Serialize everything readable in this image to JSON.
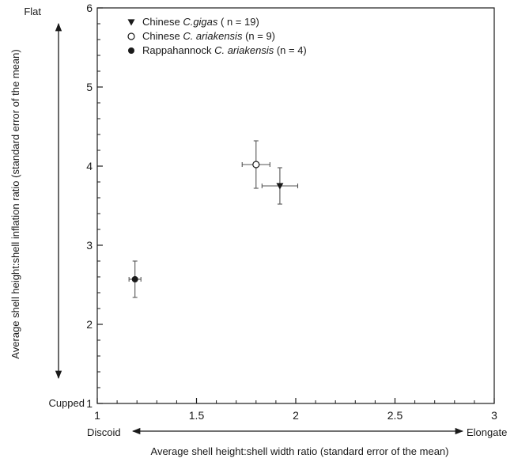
{
  "chart_data": {
    "type": "scatter",
    "xlabel": "Average shell height:shell width ratio (standard error of the mean)",
    "ylabel": "Average shell height:shell inflation ratio (standard error of the mean)",
    "xlim": [
      1,
      3
    ],
    "ylim": [
      1,
      6
    ],
    "xticks": [
      "1",
      "1.5",
      "2",
      "2.5",
      "3"
    ],
    "yticks": [
      "1",
      "2",
      "3",
      "4",
      "5",
      "6"
    ],
    "grid": false,
    "legend_position": "top-left",
    "annotations": {
      "x_low": "Discoid",
      "x_high": "Elongate",
      "y_low": "Cupped",
      "y_high": "Flat"
    },
    "series": [
      {
        "legend_prefix": "Chinese",
        "legend_species": "C.gigas",
        "legend_suffix": "( n = 19)",
        "marker": "triangle-down",
        "points": [
          {
            "x": 1.92,
            "y": 3.75,
            "xerr": 0.09,
            "yerr": 0.23
          }
        ]
      },
      {
        "legend_prefix": "Chinese",
        "legend_species": "C. ariakensis",
        "legend_suffix": "(n = 9)",
        "marker": "circle-open",
        "points": [
          {
            "x": 1.8,
            "y": 4.02,
            "xerr": 0.07,
            "yerr": 0.3
          }
        ]
      },
      {
        "legend_prefix": "Rappahannock",
        "legend_species": "C. ariakensis",
        "legend_suffix": "(n = 4)",
        "marker": "circle-filled",
        "points": [
          {
            "x": 1.19,
            "y": 2.57,
            "xerr": 0.03,
            "yerr": 0.23
          }
        ]
      }
    ]
  }
}
